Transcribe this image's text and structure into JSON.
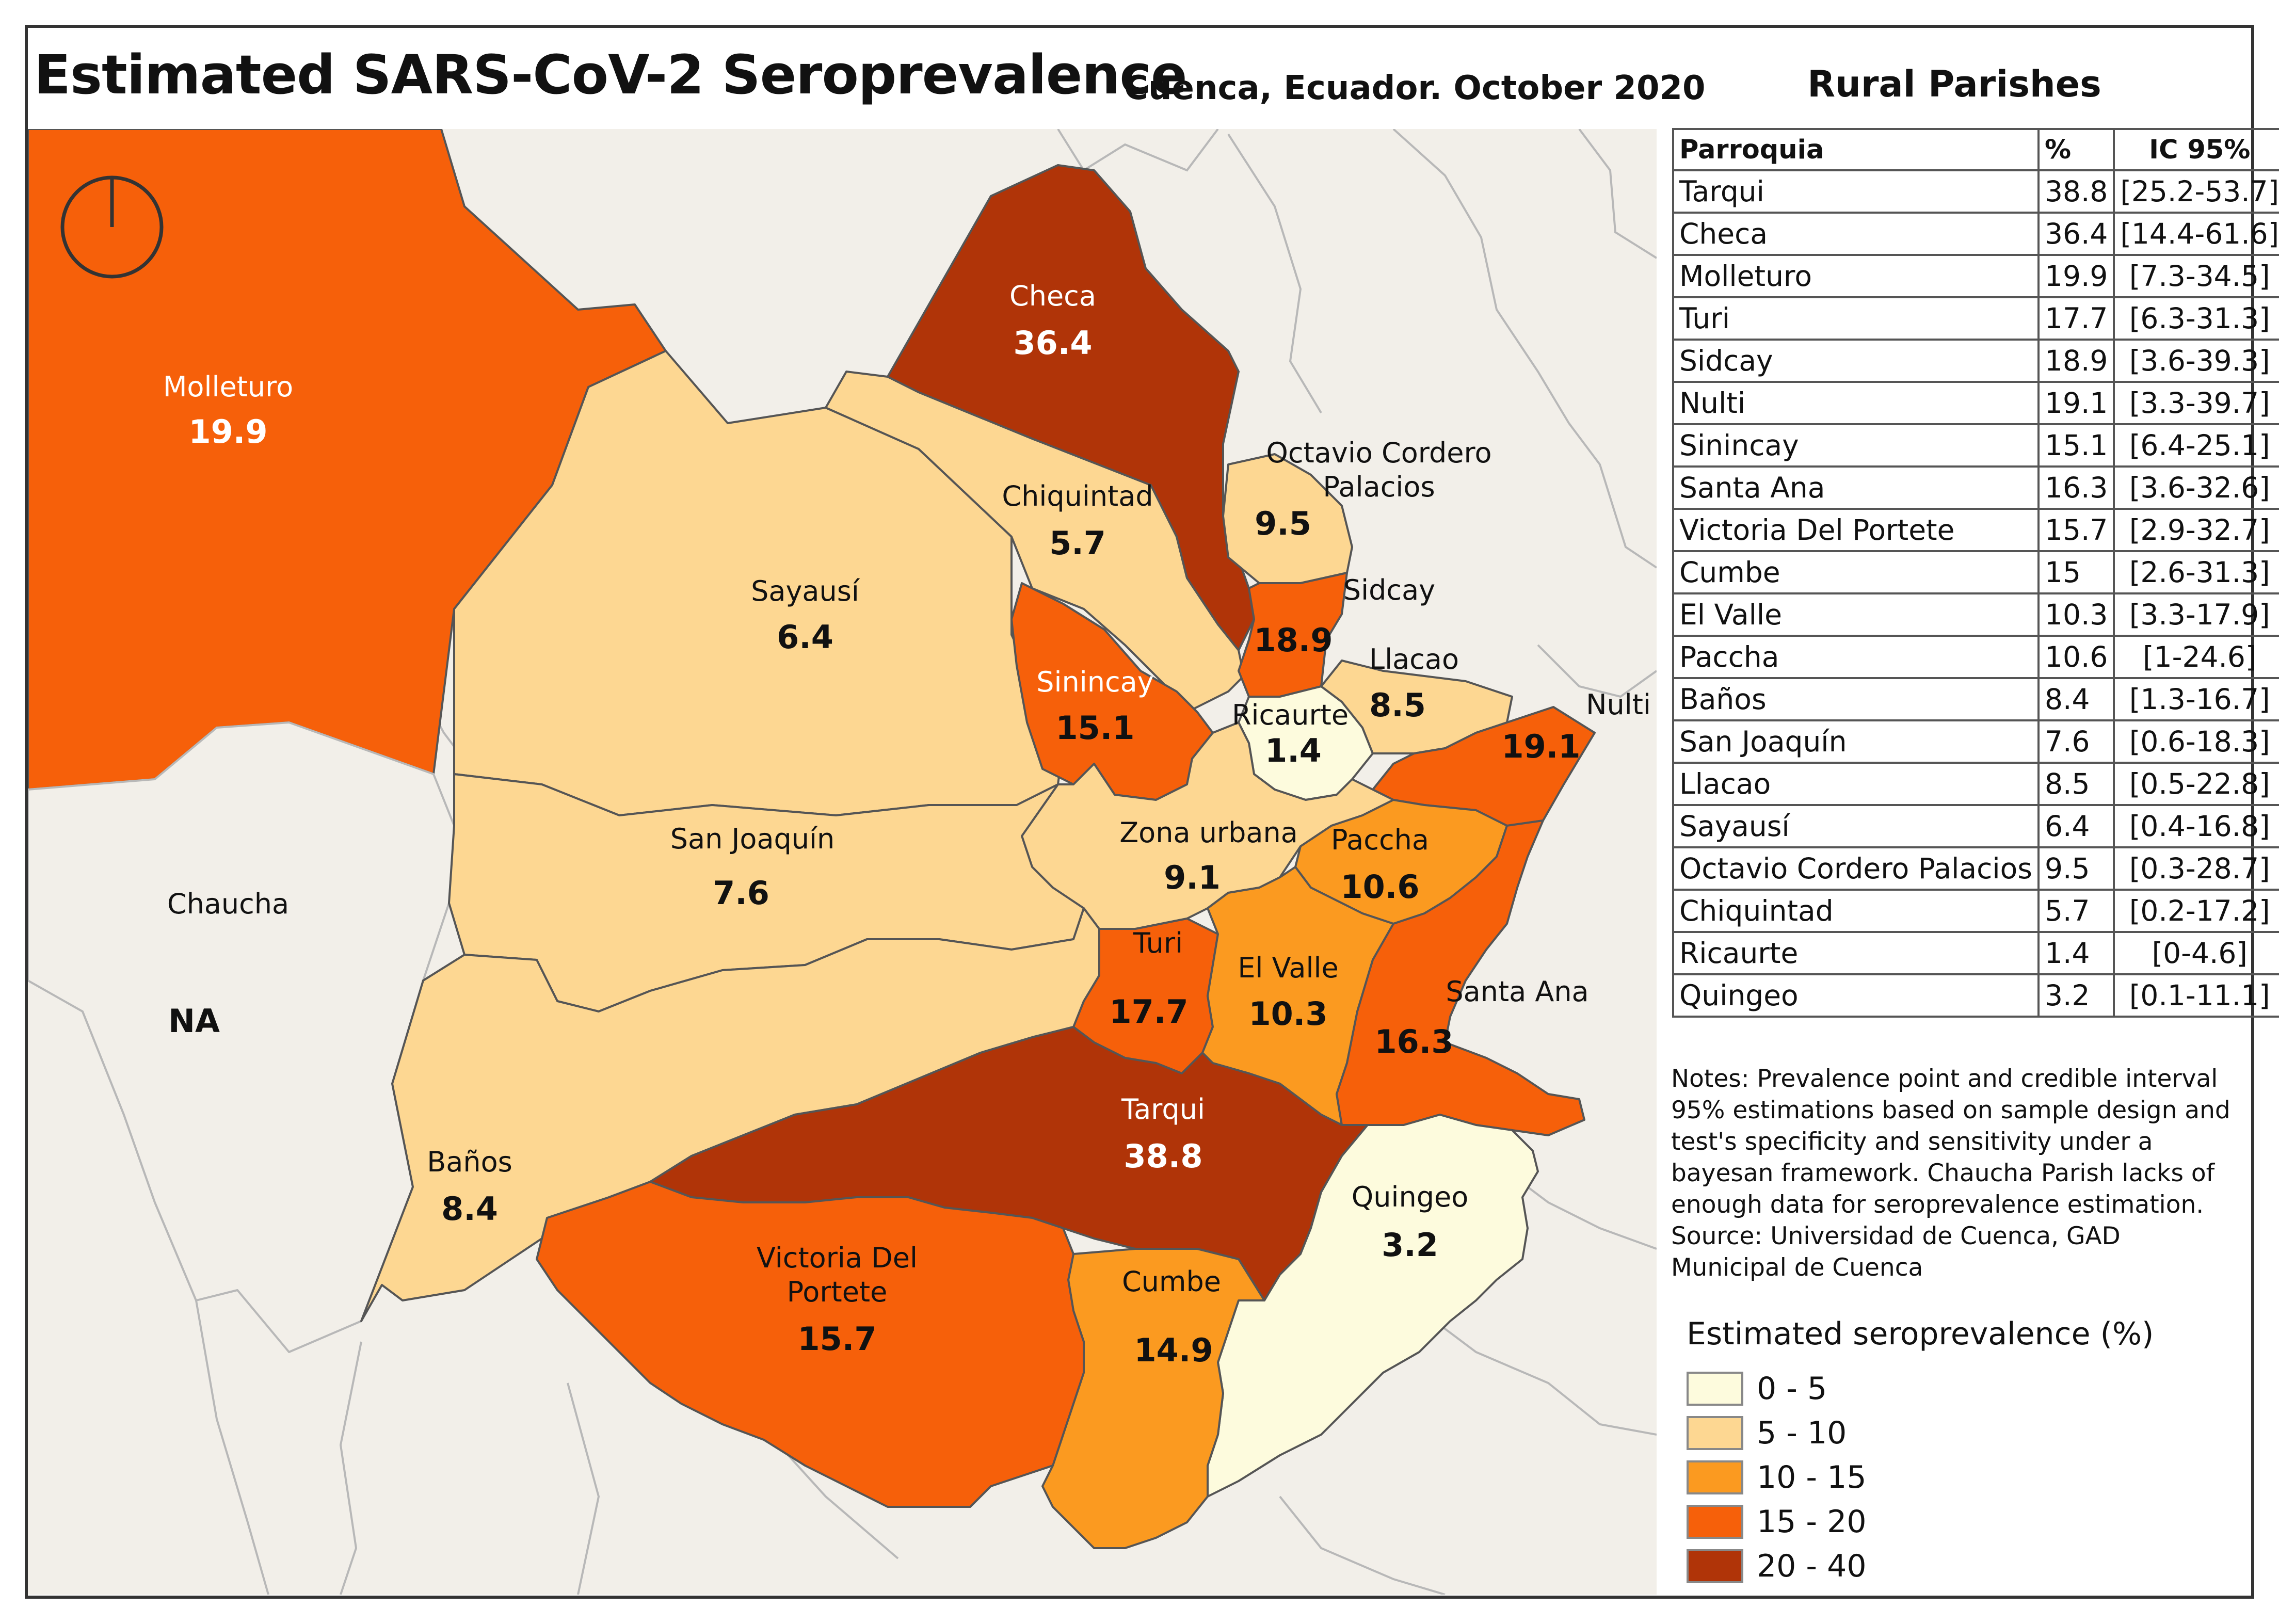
{
  "title": "Estimated SARS-CoV-2 Seroprevalence",
  "subtitle": "Cuenca, Ecuador. October 2020",
  "side_title": "Rural Parishes",
  "table": {
    "headers": [
      "Parroquia",
      "%",
      "IC 95%"
    ],
    "rows": [
      [
        "Tarqui",
        "38.8",
        "[25.2-53.7]"
      ],
      [
        "Checa",
        "36.4",
        "[14.4-61.6]"
      ],
      [
        "Molleturo",
        "19.9",
        "[7.3-34.5]"
      ],
      [
        "Turi",
        "17.7",
        "[6.3-31.3]"
      ],
      [
        "Sidcay",
        "18.9",
        "[3.6-39.3]"
      ],
      [
        "Nulti",
        "19.1",
        "[3.3-39.7]"
      ],
      [
        "Sinincay",
        "15.1",
        "[6.4-25.1]"
      ],
      [
        "Santa Ana",
        "16.3",
        "[3.6-32.6]"
      ],
      [
        "Victoria Del Portete",
        "15.7",
        "[2.9-32.7]"
      ],
      [
        "Cumbe",
        "15",
        "[2.6-31.3]"
      ],
      [
        "El Valle",
        "10.3",
        "[3.3-17.9]"
      ],
      [
        "Paccha",
        "10.6",
        "[1-24.6]"
      ],
      [
        "Baños",
        "8.4",
        "[1.3-16.7]"
      ],
      [
        "San Joaquín",
        "7.6",
        "[0.6-18.3]"
      ],
      [
        "Llacao",
        "8.5",
        "[0.5-22.8]"
      ],
      [
        "Sayausí",
        "6.4",
        "[0.4-16.8]"
      ],
      [
        "Octavio Cordero Palacios",
        "9.5",
        "[0.3-28.7]"
      ],
      [
        "Chiquintad",
        "5.7",
        "[0.2-17.2]"
      ],
      [
        "Ricaurte",
        "1.4",
        "[0-4.6]"
      ],
      [
        "Quingeo",
        "3.2",
        "[0.1-11.1]"
      ]
    ]
  },
  "notes": [
    "Notes: Prevalence point and credible interval 95% estimations based on sample design and test's specificity and sensitivity under a bayesan framework. Chaucha Parish lacks of enough data for seroprevalence estimation.",
    "Source:  Universidad de Cuenca, GAD Municipal de Cuenca"
  ],
  "legend": {
    "title": "Estimated seroprevalence (%)",
    "classes": [
      {
        "label": "0 - 5",
        "color": "#fdfbdd"
      },
      {
        "label": "5 - 10",
        "color": "#fdd792"
      },
      {
        "label": "10 - 15",
        "color": "#fb9a20"
      },
      {
        "label": "15 - 20",
        "color": "#f6600a"
      },
      {
        "label": "20 - 40",
        "color": "#b03408"
      }
    ]
  },
  "map": {
    "parishes": [
      {
        "id": "molleturo",
        "name": "Molleturo",
        "value": "19.9",
        "class": 3
      },
      {
        "id": "checa",
        "name": "Checa",
        "value": "36.4",
        "class": 4
      },
      {
        "id": "chiquintad",
        "name": "Chiquintad",
        "value": "5.7",
        "class": 1
      },
      {
        "id": "ocp",
        "name": "Octavio Cordero Palacios",
        "value": "9.5",
        "class": 1
      },
      {
        "id": "sayausi",
        "name": "Sayausí",
        "value": "6.4",
        "class": 1
      },
      {
        "id": "sidcay",
        "name": "Sidcay",
        "value": "18.9",
        "class": 3
      },
      {
        "id": "sinincay",
        "name": "Sinincay",
        "value": "15.1",
        "class": 3
      },
      {
        "id": "llacao",
        "name": "Llacao",
        "value": "8.5",
        "class": 1
      },
      {
        "id": "ricaurte",
        "name": "Ricaurte",
        "value": "1.4",
        "class": 0
      },
      {
        "id": "nulti",
        "name": "Nulti",
        "value": "19.1",
        "class": 3
      },
      {
        "id": "zona",
        "name": "Zona urbana",
        "value": "9.1",
        "class": 1
      },
      {
        "id": "paccha",
        "name": "Paccha",
        "value": "10.6",
        "class": 2
      },
      {
        "id": "sanjoaquin",
        "name": "San Joaquín",
        "value": "7.6",
        "class": 1
      },
      {
        "id": "turi",
        "name": "Turi",
        "value": "17.7",
        "class": 3
      },
      {
        "id": "elvalle",
        "name": "El Valle",
        "value": "10.3",
        "class": 2
      },
      {
        "id": "santaana",
        "name": "Santa Ana",
        "value": "16.3",
        "class": 3
      },
      {
        "id": "tarqui",
        "name": "Tarqui",
        "value": "38.8",
        "class": 4
      },
      {
        "id": "banos",
        "name": "Baños",
        "value": "8.4",
        "class": 1
      },
      {
        "id": "quingeo",
        "name": "Quingeo",
        "value": "3.2",
        "class": 0
      },
      {
        "id": "victoria",
        "name": "Victoria Del Portete",
        "name_lines": [
          "Victoria Del",
          "Portete"
        ],
        "value": "15.7",
        "class": 3
      },
      {
        "id": "cumbe",
        "name": "Cumbe",
        "value": "14.9",
        "class": 2
      },
      {
        "id": "chaucha",
        "name": "Chaucha",
        "value": "NA",
        "class": null
      }
    ]
  }
}
